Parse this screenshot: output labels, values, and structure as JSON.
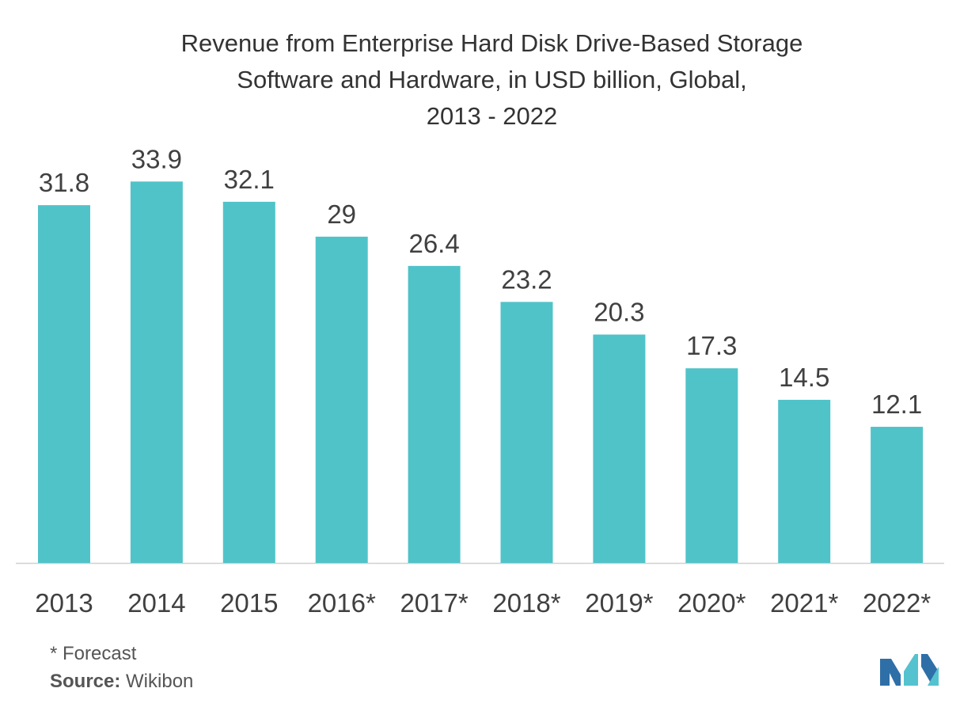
{
  "chart_data": {
    "type": "bar",
    "title_lines": [
      "Revenue from Enterprise Hard Disk Drive-Based Storage",
      "Software and Hardware, in USD billion, Global,",
      "2013 - 2022"
    ],
    "categories": [
      "2013",
      "2014",
      "2015",
      "2016*",
      "2017*",
      "2018*",
      "2019*",
      "2020*",
      "2021*",
      "2022*"
    ],
    "values": [
      31.8,
      33.9,
      32.1,
      29,
      26.4,
      23.2,
      20.3,
      17.3,
      14.5,
      12.1
    ],
    "data_labels": [
      "31.8",
      "33.9",
      "32.1",
      "29",
      "26.4",
      "23.2",
      "20.3",
      "17.3",
      "14.5",
      "12.1"
    ],
    "xlabel": "",
    "ylabel": "",
    "ylim": [
      0,
      35
    ],
    "grid": false,
    "legend": "none",
    "bar_color": "#50c3c9",
    "axis_color": "#d0d0d0"
  },
  "footnote": "* Forecast",
  "source_label": "Source:",
  "source_value": "Wikibon",
  "logo": {
    "icon": "mordor-intelligence-logo",
    "colors": [
      "#2f6fa8",
      "#54c3cf"
    ]
  }
}
